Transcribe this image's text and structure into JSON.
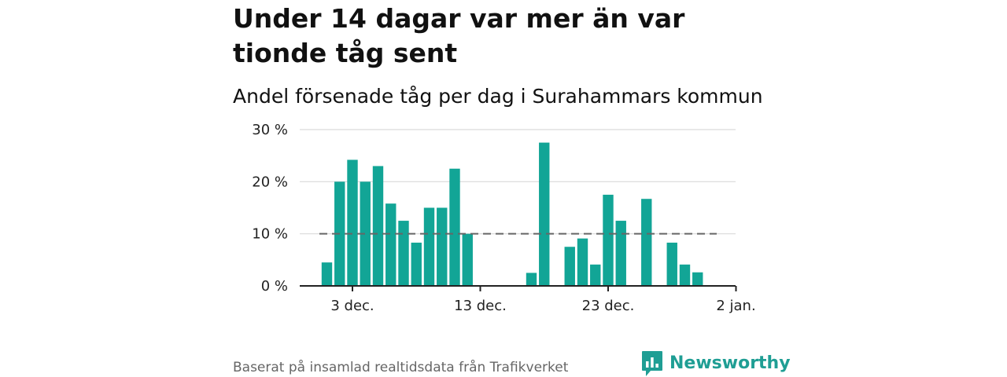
{
  "title": "Under 14 dagar var mer än var tionde tåg sent",
  "subtitle": "Andel försenade tåg per dag i Surahammars kommun",
  "source": "Baserat på insamlad realtidsdata från Trafikverket",
  "brand": {
    "name": "Newsworthy",
    "icon": "newsworthy-logo-icon",
    "color": "#1f9e94"
  },
  "chart_data": {
    "type": "bar",
    "ylabel": "",
    "xlabel": "",
    "ylim": [
      0,
      30
    ],
    "grid": true,
    "bar_color": "#12a596",
    "reference_line": {
      "value": 10,
      "style": "dashed",
      "color": "#666666"
    },
    "y_ticks": [
      {
        "value": 0,
        "label": "0 %"
      },
      {
        "value": 10,
        "label": "10 %"
      },
      {
        "value": 20,
        "label": "20 %"
      },
      {
        "value": 30,
        "label": "30 %"
      }
    ],
    "x_ticks": [
      {
        "date": "2023-12-03",
        "label": "3 dec."
      },
      {
        "date": "2023-12-13",
        "label": "13 dec."
      },
      {
        "date": "2023-12-23",
        "label": "23 dec."
      },
      {
        "date": "2024-01-02",
        "label": "2 jan."
      }
    ],
    "x": [
      "2023-12-01",
      "2023-12-02",
      "2023-12-03",
      "2023-12-04",
      "2023-12-05",
      "2023-12-06",
      "2023-12-07",
      "2023-12-08",
      "2023-12-09",
      "2023-12-10",
      "2023-12-11",
      "2023-12-12",
      "2023-12-13",
      "2023-12-14",
      "2023-12-15",
      "2023-12-16",
      "2023-12-17",
      "2023-12-18",
      "2023-12-19",
      "2023-12-20",
      "2023-12-21",
      "2023-12-22",
      "2023-12-23",
      "2023-12-24",
      "2023-12-25",
      "2023-12-26",
      "2023-12-27",
      "2023-12-28",
      "2023-12-29",
      "2023-12-30",
      "2023-12-31"
    ],
    "values": [
      4.5,
      20.0,
      24.2,
      20.0,
      23.0,
      15.8,
      12.5,
      8.3,
      15.0,
      15.0,
      22.5,
      10.0,
      0,
      0,
      0,
      0,
      2.5,
      27.5,
      0,
      7.5,
      9.1,
      4.1,
      17.5,
      12.5,
      0,
      16.7,
      0,
      8.3,
      4.1,
      2.6,
      0
    ]
  }
}
